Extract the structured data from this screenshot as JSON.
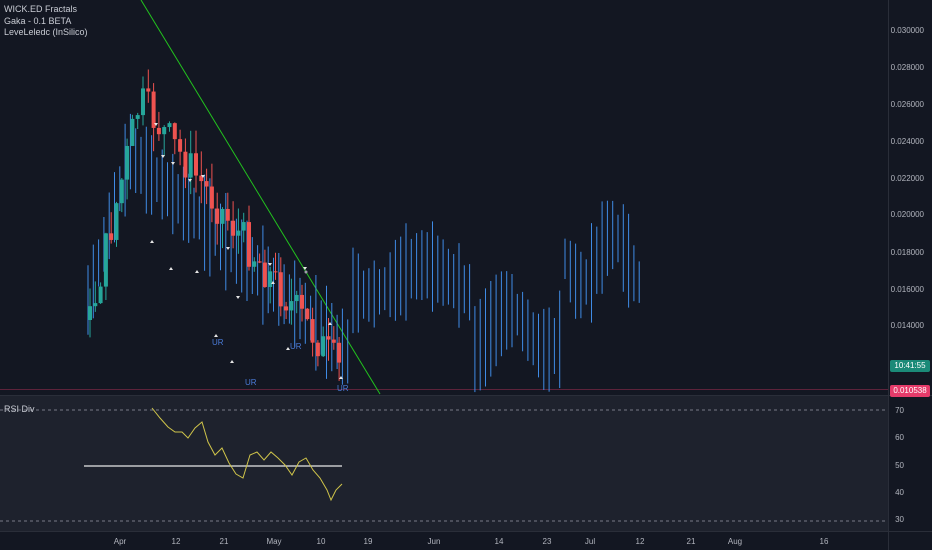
{
  "legend": {
    "indicators": [
      "WICK.ED Fractals",
      "Gaka - 0.1 BETA",
      "LeveLeledc (InSilico)"
    ]
  },
  "rsi_pane": {
    "title": "RSI Div",
    "levels": [
      "70",
      "60",
      "50",
      "40",
      "30"
    ]
  },
  "price_axis": {
    "labels": [
      "0.030000",
      "0.028000",
      "0.026000",
      "0.024000",
      "0.022000",
      "0.020000",
      "0.018000",
      "0.016000",
      "0.014000"
    ],
    "countdown": "10:41:55",
    "last_price": "0.010538"
  },
  "time_axis": {
    "labels": [
      "Apr",
      "12",
      "21",
      "May",
      "10",
      "19",
      "Jun",
      "14",
      "23",
      "Jul",
      "12",
      "21",
      "Aug",
      "16"
    ]
  },
  "markers": {
    "pivot_labels": [
      "UR",
      "UR",
      "UR",
      "UR"
    ]
  },
  "colors": {
    "background": "#131722",
    "bull": "#26a69a",
    "bear": "#ef5350",
    "projection": "#2962ff",
    "trendline": "#22c21e",
    "rsi_line": "#cfc44a",
    "countdown_bg": "#1b8a78",
    "last_price_bg": "#e53b6a"
  }
}
